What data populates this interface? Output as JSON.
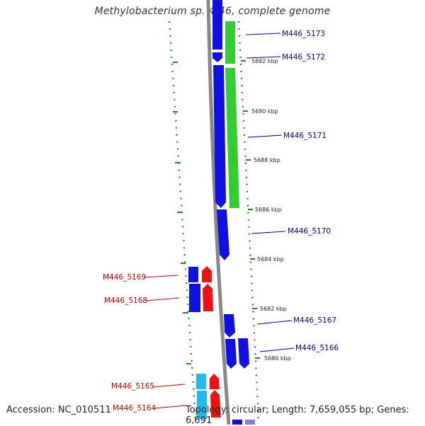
{
  "title": "Methylobacterium sp. 4-46, complete genome",
  "footer": {
    "accession": "Accession: NC_010511",
    "topology": "Topology: circular; Length: 7,659,055 bp; Genes: 6,691"
  },
  "colors": {
    "forward_cds": "#1010e0",
    "reverse_cds": "#ee1111",
    "forward_feature": "#33cc33",
    "reverse_feature": "#22bbee",
    "forward_label": "#0000bb",
    "reverse_label": "#cc0000",
    "backbone": "#888888",
    "gc_dots": "#228822"
  },
  "ticks": [
    "5692 kbp",
    "5690 kbp",
    "5688 kbp",
    "5686 kbp",
    "5684 kbp",
    "5682 kbp",
    "5680 kbp"
  ],
  "forward_labels": [
    "M446_5173",
    "M446_5172",
    "M446_5171",
    "M446_5170",
    "M446_5167",
    "M446_5166"
  ],
  "reverse_labels": [
    "M446_5169",
    "M446_5168",
    "M446_5165",
    "M446_5164"
  ]
}
